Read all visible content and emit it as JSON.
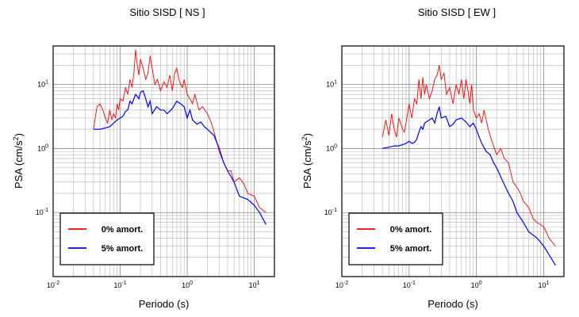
{
  "chart_data": [
    {
      "type": "line",
      "title": "Sitio SISD [ NS ]",
      "xlabel": "Periodo (s)",
      "ylabel": "PSA (cm/s²)",
      "xscale": "log",
      "yscale": "log",
      "xlim": [
        0.01,
        20
      ],
      "ylim": [
        0.01,
        40
      ],
      "grid": true,
      "legend_position": "lower-left",
      "x_ticks": [
        {
          "base": "10",
          "exp": "-2"
        },
        {
          "base": "10",
          "exp": "-1"
        },
        {
          "base": "10",
          "exp": "0"
        },
        {
          "base": "10",
          "exp": "1"
        }
      ],
      "y_ticks": [
        {
          "base": "10",
          "exp": "-1"
        },
        {
          "base": "10",
          "exp": "0"
        },
        {
          "base": "10",
          "exp": "1"
        }
      ],
      "series": [
        {
          "name": "0% amort.",
          "color": "#ff0000",
          "x": [
            0.04,
            0.045,
            0.05,
            0.055,
            0.06,
            0.065,
            0.07,
            0.075,
            0.08,
            0.085,
            0.09,
            0.095,
            0.1,
            0.11,
            0.12,
            0.13,
            0.14,
            0.15,
            0.16,
            0.17,
            0.18,
            0.19,
            0.2,
            0.22,
            0.24,
            0.26,
            0.28,
            0.3,
            0.33,
            0.36,
            0.4,
            0.45,
            0.5,
            0.55,
            0.6,
            0.65,
            0.7,
            0.75,
            0.8,
            0.85,
            0.9,
            1.0,
            1.1,
            1.2,
            1.3,
            1.5,
            1.7,
            2.0,
            2.3,
            2.6,
            3.0,
            3.5,
            4.0,
            4.5,
            5.0,
            6.0,
            7.0,
            8.0,
            10.0,
            12.0,
            15.0
          ],
          "y": [
            2.0,
            4.5,
            5.0,
            4.0,
            3.0,
            2.5,
            4.0,
            2.8,
            3.5,
            3.0,
            5.0,
            4.0,
            6.0,
            5.5,
            9.0,
            7.0,
            12.0,
            9.0,
            15.0,
            35.0,
            20.0,
            14.0,
            25.0,
            18.0,
            12.0,
            15.0,
            28.0,
            18.0,
            10.0,
            12.0,
            8.0,
            11.0,
            9.0,
            14.0,
            8.0,
            15.0,
            18.0,
            12.0,
            10.0,
            9.0,
            12.0,
            7.0,
            6.0,
            5.0,
            7.0,
            4.0,
            4.5,
            3.5,
            2.5,
            1.6,
            0.9,
            0.6,
            0.45,
            0.45,
            0.3,
            0.35,
            0.28,
            0.2,
            0.18,
            0.12,
            0.1
          ]
        },
        {
          "name": "5% amort.",
          "color": "#0000ff",
          "x": [
            0.04,
            0.05,
            0.06,
            0.07,
            0.08,
            0.09,
            0.1,
            0.11,
            0.12,
            0.13,
            0.14,
            0.15,
            0.16,
            0.17,
            0.18,
            0.19,
            0.2,
            0.22,
            0.24,
            0.26,
            0.28,
            0.3,
            0.35,
            0.4,
            0.45,
            0.5,
            0.6,
            0.7,
            0.8,
            0.9,
            1.0,
            1.1,
            1.2,
            1.4,
            1.6,
            1.8,
            2.0,
            2.5,
            3.0,
            3.5,
            4.0,
            5.0,
            6.0,
            8.0,
            10.0,
            12.0,
            15.0
          ],
          "y": [
            2.0,
            2.0,
            2.1,
            2.2,
            2.5,
            2.8,
            3.0,
            3.2,
            3.8,
            4.0,
            5.5,
            5.0,
            6.0,
            7.0,
            6.5,
            6.0,
            7.5,
            8.0,
            6.0,
            4.5,
            5.5,
            3.5,
            4.5,
            4.0,
            4.0,
            3.5,
            4.2,
            5.5,
            5.0,
            4.5,
            3.0,
            4.0,
            2.8,
            2.4,
            2.6,
            2.2,
            2.0,
            1.6,
            1.0,
            0.6,
            0.45,
            0.3,
            0.18,
            0.16,
            0.13,
            0.1,
            0.065
          ]
        }
      ]
    },
    {
      "type": "line",
      "title": "Sitio SISD [ EW ]",
      "xlabel": "Periodo (s)",
      "ylabel": "PSA (cm/s²)",
      "xscale": "log",
      "yscale": "log",
      "xlim": [
        0.01,
        20
      ],
      "ylim": [
        0.01,
        40
      ],
      "grid": true,
      "legend_position": "lower-left",
      "x_ticks": [
        {
          "base": "10",
          "exp": "-2"
        },
        {
          "base": "10",
          "exp": "-1"
        },
        {
          "base": "10",
          "exp": "0"
        },
        {
          "base": "10",
          "exp": "1"
        }
      ],
      "y_ticks": [
        {
          "base": "10",
          "exp": "-1"
        },
        {
          "base": "10",
          "exp": "0"
        },
        {
          "base": "10",
          "exp": "1"
        }
      ],
      "series": [
        {
          "name": "0% amort.",
          "color": "#ff0000",
          "x": [
            0.04,
            0.045,
            0.05,
            0.055,
            0.06,
            0.065,
            0.07,
            0.075,
            0.08,
            0.085,
            0.09,
            0.1,
            0.11,
            0.12,
            0.13,
            0.14,
            0.15,
            0.16,
            0.17,
            0.18,
            0.2,
            0.22,
            0.24,
            0.26,
            0.28,
            0.3,
            0.33,
            0.36,
            0.4,
            0.45,
            0.5,
            0.55,
            0.6,
            0.65,
            0.7,
            0.75,
            0.8,
            0.85,
            0.9,
            1.0,
            1.1,
            1.2,
            1.3,
            1.5,
            1.7,
            2.0,
            2.3,
            2.6,
            3.0,
            3.5,
            4.0,
            4.5,
            5.0,
            6.0,
            7.0,
            8.0,
            10.0,
            12.0,
            15.0
          ],
          "y": [
            1.5,
            2.8,
            1.6,
            3.5,
            2.0,
            1.5,
            3.0,
            2.5,
            2.0,
            1.8,
            2.5,
            5.0,
            3.0,
            6.0,
            5.0,
            12.0,
            6.0,
            13.0,
            7.0,
            10.0,
            6.0,
            8.0,
            12.0,
            14.0,
            20.0,
            12.0,
            15.0,
            7.0,
            9.0,
            5.0,
            10.0,
            7.0,
            12.0,
            6.0,
            12.0,
            8.0,
            5.0,
            10.0,
            4.0,
            3.0,
            3.5,
            2.5,
            4.0,
            2.0,
            1.3,
            0.8,
            1.0,
            0.7,
            0.6,
            0.3,
            0.25,
            0.2,
            0.15,
            0.12,
            0.08,
            0.07,
            0.06,
            0.04,
            0.03
          ]
        },
        {
          "name": "5% amort.",
          "color": "#0000ff",
          "x": [
            0.04,
            0.05,
            0.06,
            0.07,
            0.08,
            0.09,
            0.1,
            0.11,
            0.12,
            0.13,
            0.14,
            0.15,
            0.16,
            0.17,
            0.18,
            0.2,
            0.22,
            0.24,
            0.26,
            0.28,
            0.3,
            0.35,
            0.4,
            0.45,
            0.5,
            0.6,
            0.7,
            0.8,
            0.9,
            1.0,
            1.1,
            1.2,
            1.4,
            1.6,
            1.8,
            2.0,
            2.5,
            3.0,
            3.5,
            4.0,
            5.0,
            6.0,
            8.0,
            10.0,
            12.0,
            15.0
          ],
          "y": [
            1.0,
            1.05,
            1.1,
            1.1,
            1.15,
            1.2,
            1.3,
            1.2,
            1.25,
            1.4,
            1.8,
            2.2,
            2.0,
            2.5,
            2.6,
            2.8,
            3.0,
            2.5,
            3.5,
            4.5,
            3.0,
            3.2,
            2.2,
            2.4,
            2.8,
            3.0,
            2.6,
            2.2,
            2.5,
            2.0,
            1.5,
            1.2,
            0.9,
            0.8,
            0.6,
            0.5,
            0.3,
            0.2,
            0.15,
            0.1,
            0.07,
            0.05,
            0.04,
            0.03,
            0.022,
            0.015
          ]
        }
      ]
    }
  ]
}
